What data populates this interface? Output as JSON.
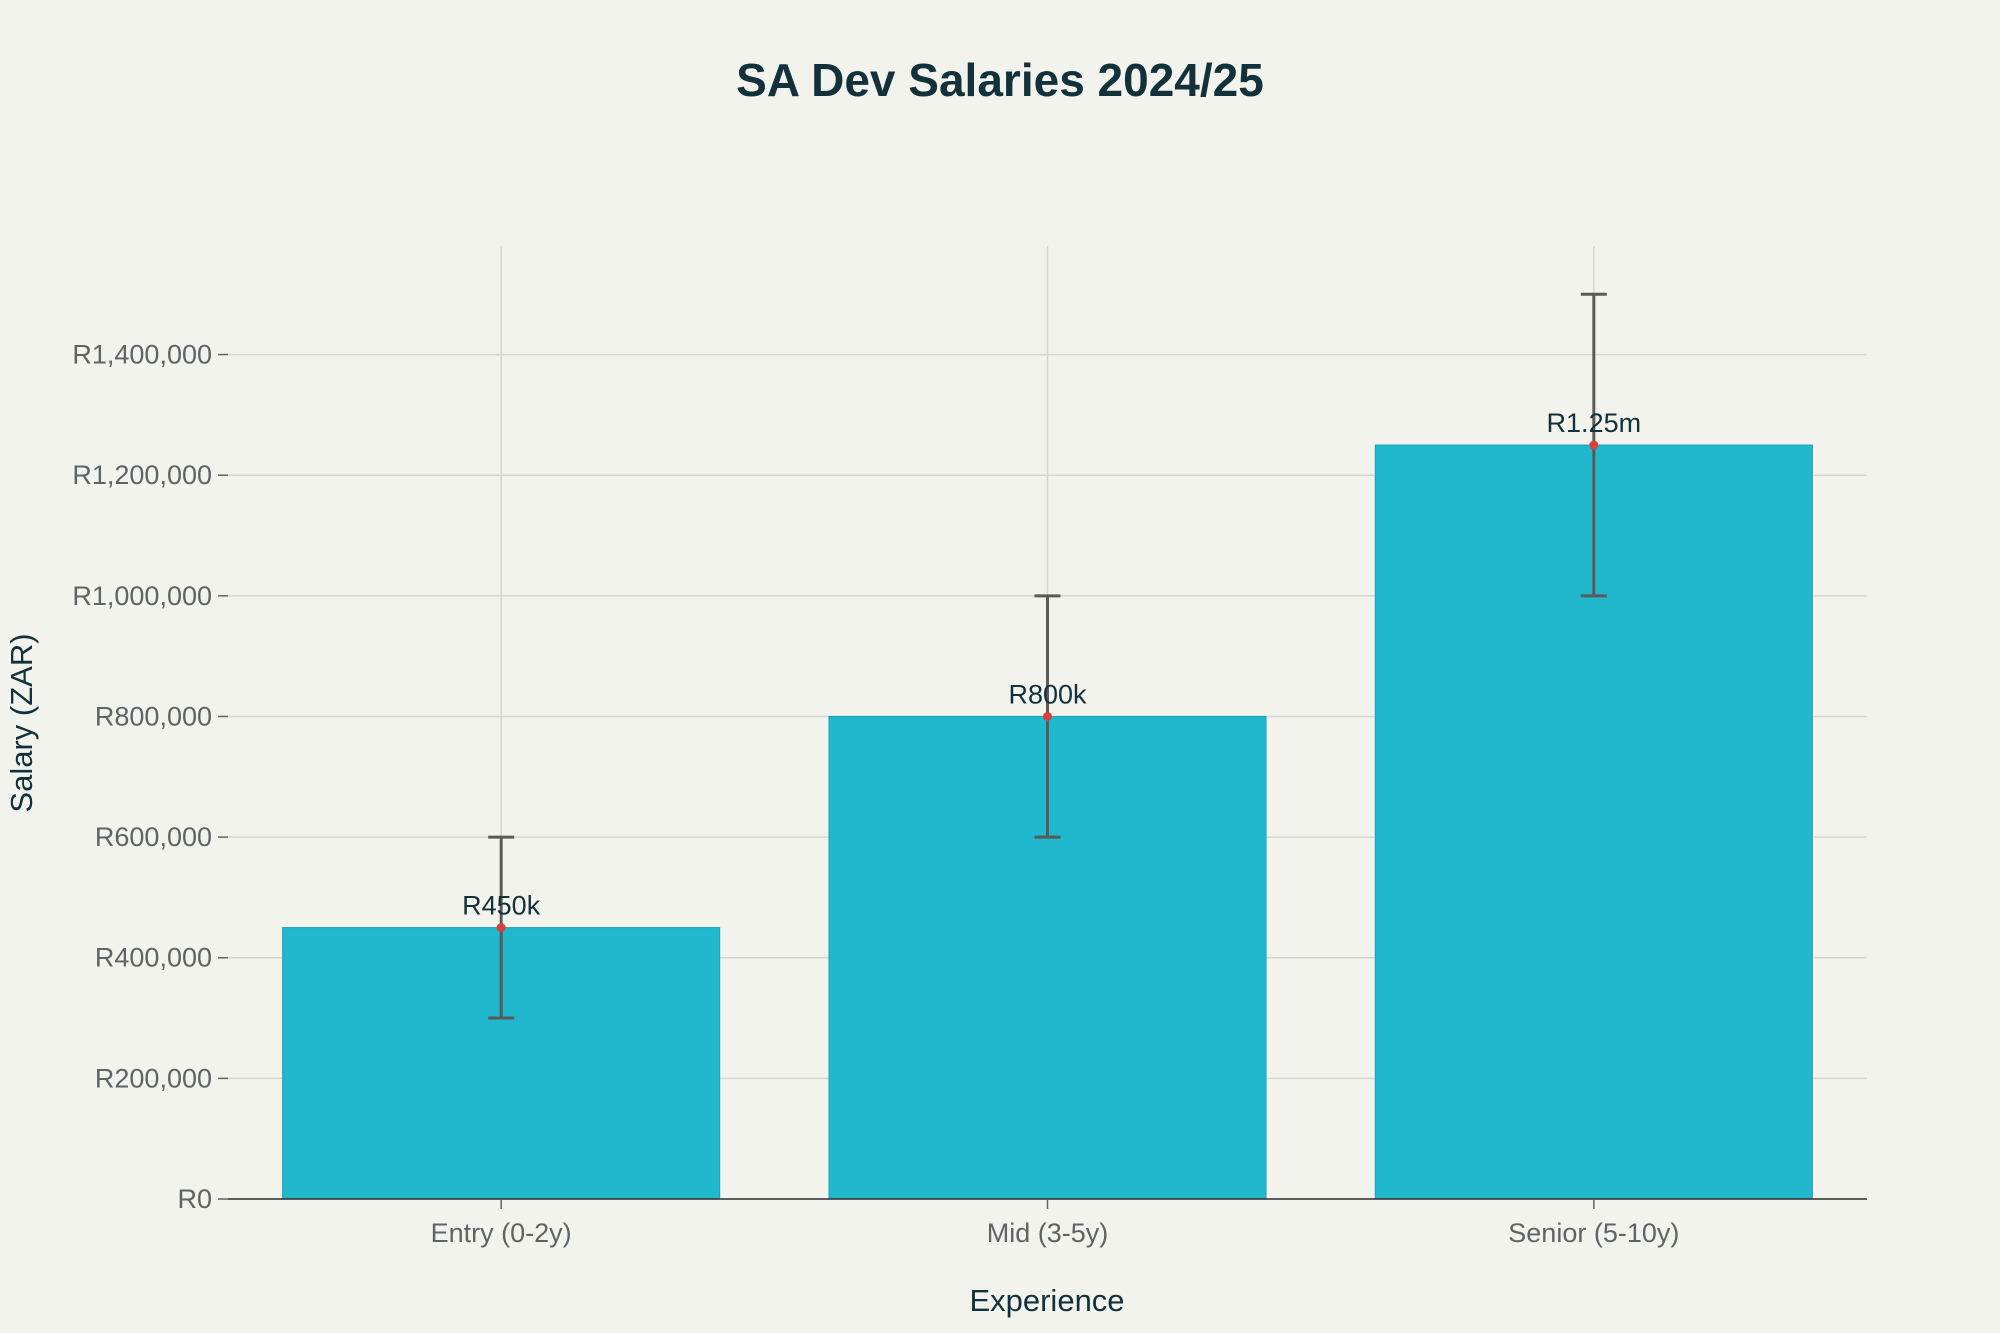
{
  "chart_data": {
    "type": "bar",
    "title": "SA Dev Salaries 2024/25",
    "xlabel": "Experience",
    "ylabel": "Salary (ZAR)",
    "categories": [
      "Entry (0-2y)",
      "Mid (3-5y)",
      "Senior (5-10y)"
    ],
    "values": [
      450000,
      800000,
      1250000
    ],
    "error_low": [
      300000,
      600000,
      1000000
    ],
    "error_high": [
      600000,
      1000000,
      1500000
    ],
    "data_labels": [
      "R450k",
      "R800k",
      "R1.25m"
    ],
    "ylim": [
      0,
      1580000
    ],
    "y_ticks": [
      0,
      200000,
      400000,
      600000,
      800000,
      1000000,
      1200000,
      1400000
    ],
    "y_tick_labels": [
      "R0",
      "R200,000",
      "R400,000",
      "R600,000",
      "R800,000",
      "R1,000,000",
      "R1,200,000",
      "R1,400,000"
    ],
    "grid": true,
    "legend": "none",
    "colors": {
      "bar": "#21b7cc",
      "marker": "#d9413c",
      "error_bar": "#5a5a5a",
      "text": "#13313a",
      "background": "#f3f3ee"
    }
  }
}
